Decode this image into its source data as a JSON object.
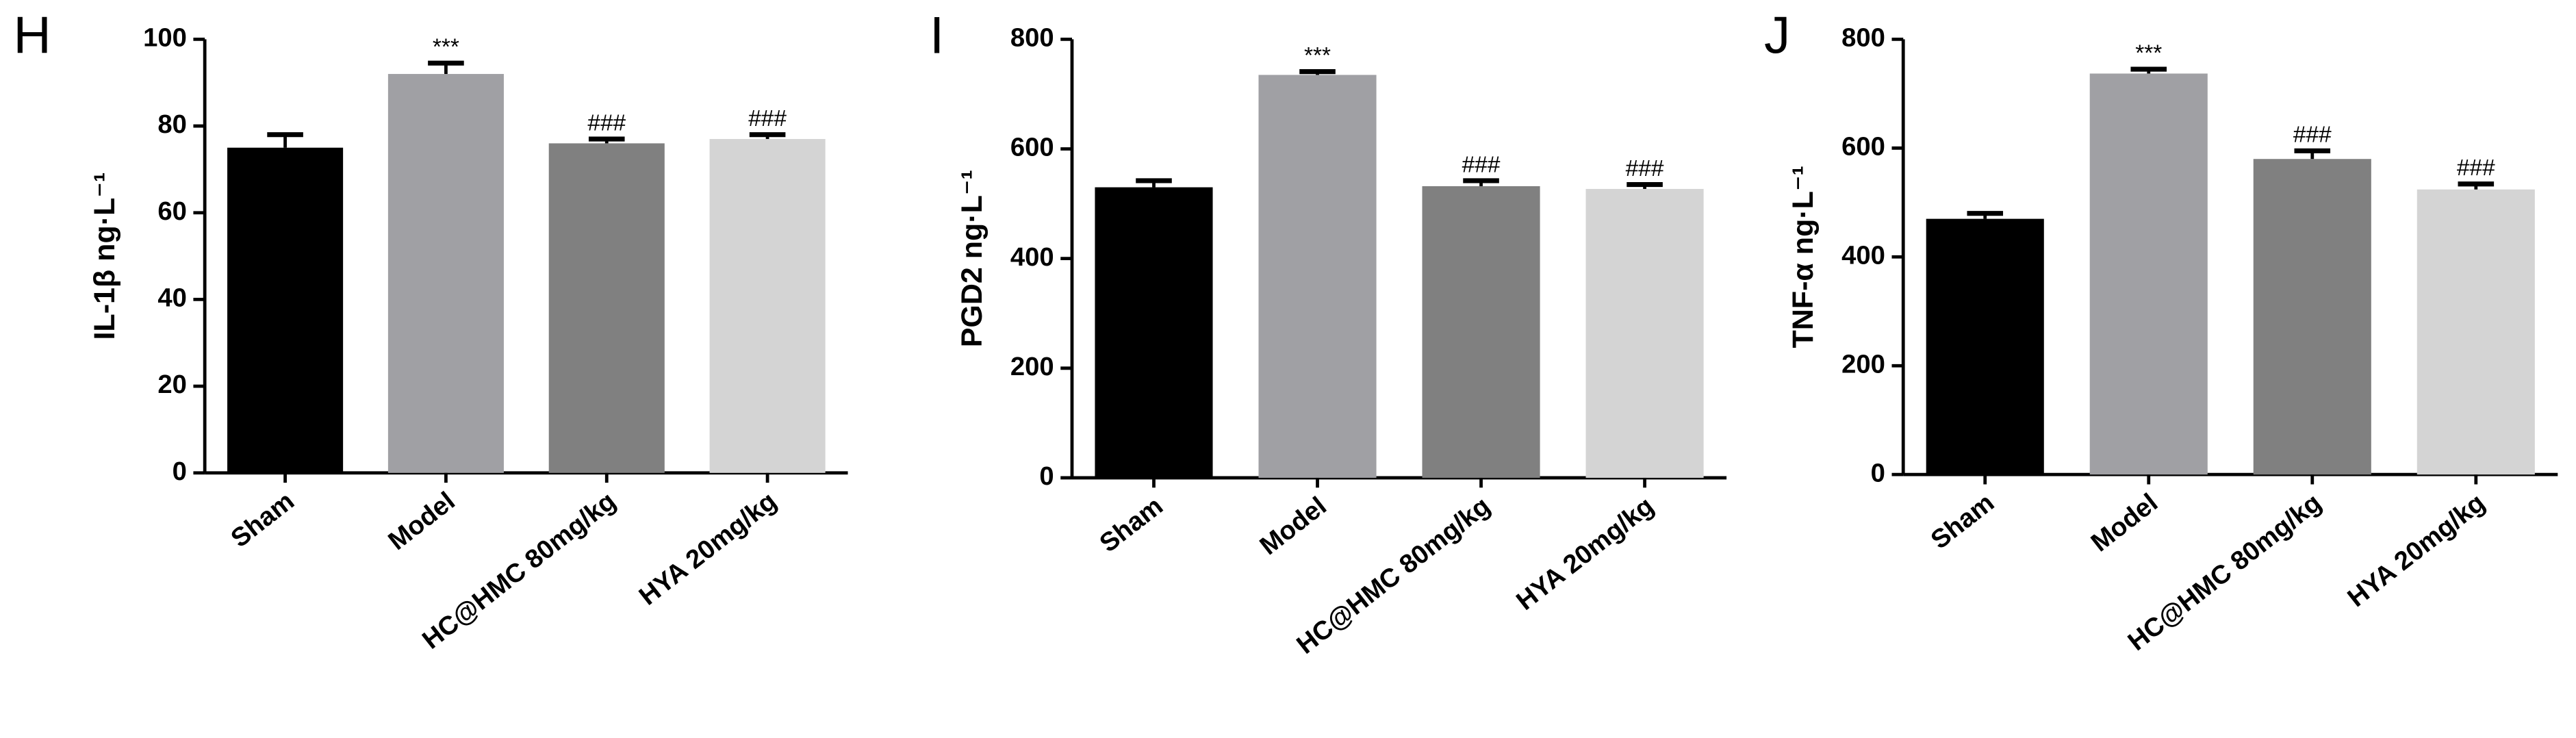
{
  "chart_data": [
    {
      "type": "bar",
      "panel_label": "H",
      "y_label": "IL-1β ng·L⁻¹",
      "categories": [
        "Sham",
        "Model",
        "HC@HMC 80mg/kg",
        "HYA 20mg/kg"
      ],
      "values": [
        75,
        92,
        76,
        77
      ],
      "errors": [
        3,
        2.5,
        1,
        1
      ],
      "annotations": [
        null,
        "***",
        "###",
        "###"
      ],
      "colors": [
        "#000000",
        "#a0a0a4",
        "#808080",
        "#d4d4d4"
      ],
      "ylim": [
        0,
        100
      ],
      "yticks": [
        0,
        20,
        40,
        60,
        80,
        100
      ]
    },
    {
      "type": "bar",
      "panel_label": "I",
      "y_label": "PGD2 ng·L⁻¹",
      "categories": [
        "Sham",
        "Model",
        "HC@HMC 80mg/kg",
        "HYA 20mg/kg"
      ],
      "values": [
        530,
        735,
        532,
        527
      ],
      "errors": [
        12,
        6,
        10,
        8
      ],
      "annotations": [
        null,
        "***",
        "###",
        "###"
      ],
      "colors": [
        "#000000",
        "#a0a0a4",
        "#808080",
        "#d4d4d4"
      ],
      "ylim": [
        0,
        800
      ],
      "yticks": [
        0,
        200,
        400,
        600,
        800
      ]
    },
    {
      "type": "bar",
      "panel_label": "J",
      "y_label": "TNF-α ng·L⁻¹",
      "categories": [
        "Sham",
        "Model",
        "HC@HMC 80mg/kg",
        "HYA 20mg/kg"
      ],
      "values": [
        470,
        737,
        580,
        524
      ],
      "errors": [
        10,
        8,
        15,
        10
      ],
      "annotations": [
        null,
        "***",
        "###",
        "###"
      ],
      "colors": [
        "#000000",
        "#a0a0a4",
        "#808080",
        "#d4d4d4"
      ],
      "ylim": [
        0,
        800
      ],
      "yticks": [
        0,
        200,
        400,
        600,
        800
      ]
    }
  ]
}
